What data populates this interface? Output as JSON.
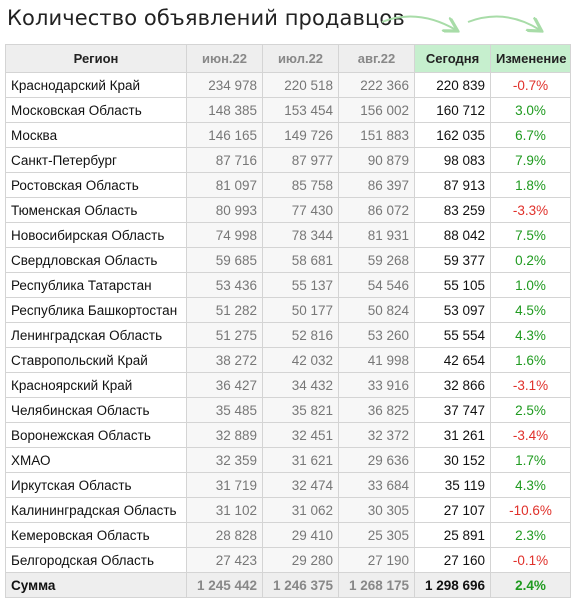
{
  "title": "Количество объявлений продавцов",
  "colors": {
    "header_bg": "#eeeeee",
    "highlight": "#c6efce",
    "positive": "#1f9a1f",
    "negative": "#e0302a",
    "arrow": "#a8dca8"
  },
  "headers": {
    "region": "Регион",
    "m1": "июн.22",
    "m2": "июл.22",
    "m3": "авг.22",
    "today": "Сегодня",
    "change": "Изменение"
  },
  "rows": [
    {
      "region": "Краснодарский Край",
      "m1": "234 978",
      "m2": "220 518",
      "m3": "222 366",
      "today": "220 839",
      "change": "-0.7%"
    },
    {
      "region": "Московская Область",
      "m1": "148 385",
      "m2": "153 454",
      "m3": "156 002",
      "today": "160 712",
      "change": "3.0%"
    },
    {
      "region": "Москва",
      "m1": "146 165",
      "m2": "149 726",
      "m3": "151 883",
      "today": "162 035",
      "change": "6.7%"
    },
    {
      "region": "Санкт-Петербург",
      "m1": "87 716",
      "m2": "87 977",
      "m3": "90 879",
      "today": "98 083",
      "change": "7.9%"
    },
    {
      "region": "Ростовская Область",
      "m1": "81 097",
      "m2": "85 758",
      "m3": "86 397",
      "today": "87 913",
      "change": "1.8%"
    },
    {
      "region": "Тюменская Область",
      "m1": "80 993",
      "m2": "77 430",
      "m3": "86 072",
      "today": "83 259",
      "change": "-3.3%"
    },
    {
      "region": "Новосибирская Область",
      "m1": "74 998",
      "m2": "78 344",
      "m3": "81 931",
      "today": "88 042",
      "change": "7.5%"
    },
    {
      "region": "Свердловская Область",
      "m1": "59 685",
      "m2": "58 681",
      "m3": "59 268",
      "today": "59 377",
      "change": "0.2%"
    },
    {
      "region": "Республика Татарстан",
      "m1": "53 436",
      "m2": "55 137",
      "m3": "54 546",
      "today": "55 105",
      "change": "1.0%"
    },
    {
      "region": "Республика Башкортостан",
      "m1": "51 282",
      "m2": "50 177",
      "m3": "50 824",
      "today": "53 097",
      "change": "4.5%"
    },
    {
      "region": "Ленинградская Область",
      "m1": "51 275",
      "m2": "52 816",
      "m3": "53 260",
      "today": "55 554",
      "change": "4.3%"
    },
    {
      "region": "Ставропольский Край",
      "m1": "38 272",
      "m2": "42 032",
      "m3": "41 998",
      "today": "42 654",
      "change": "1.6%"
    },
    {
      "region": "Красноярский Край",
      "m1": "36 427",
      "m2": "34 432",
      "m3": "33 916",
      "today": "32 866",
      "change": "-3.1%"
    },
    {
      "region": "Челябинская Область",
      "m1": "35 485",
      "m2": "35 821",
      "m3": "36 825",
      "today": "37 747",
      "change": "2.5%"
    },
    {
      "region": "Воронежская Область",
      "m1": "32 889",
      "m2": "32 451",
      "m3": "32 372",
      "today": "31 261",
      "change": "-3.4%"
    },
    {
      "region": "ХМАО",
      "m1": "32 359",
      "m2": "31 621",
      "m3": "29 636",
      "today": "30 152",
      "change": "1.7%"
    },
    {
      "region": "Иркутская Область",
      "m1": "31 719",
      "m2": "32 474",
      "m3": "33 684",
      "today": "35 119",
      "change": "4.3%"
    },
    {
      "region": "Калининградская Область",
      "m1": "31 102",
      "m2": "31 062",
      "m3": "30 305",
      "today": "27 107",
      "change": "-10.6%"
    },
    {
      "region": "Кемеровская Область",
      "m1": "28 828",
      "m2": "29 410",
      "m3": "25 305",
      "today": "25 891",
      "change": "2.3%"
    },
    {
      "region": "Белгородская Область",
      "m1": "27 423",
      "m2": "29 280",
      "m3": "27 190",
      "today": "27 160",
      "change": "-0.1%"
    }
  ],
  "total": {
    "region": "Сумма",
    "m1": "1 245 442",
    "m2": "1 246 375",
    "m3": "1 268 175",
    "today": "1 298 696",
    "change": "2.4%"
  }
}
